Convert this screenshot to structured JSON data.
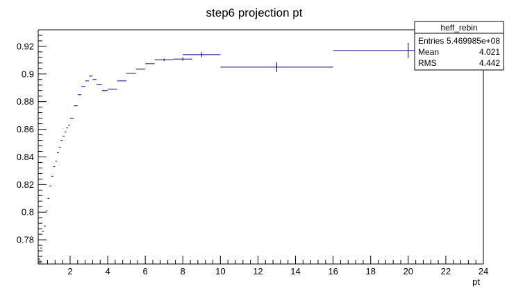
{
  "chart_data": {
    "type": "scatter",
    "title": "step6 projection pt",
    "xlabel": "pt",
    "ylabel": "",
    "xlim": [
      0.3,
      24
    ],
    "ylim": [
      0.7625,
      0.932
    ],
    "x_ticks": [
      2,
      4,
      6,
      8,
      10,
      12,
      14,
      16,
      18,
      20,
      22,
      24
    ],
    "y_ticks": [
      0.78,
      0.8,
      0.82,
      0.84,
      0.86,
      0.88,
      0.9,
      0.92
    ],
    "grid": false,
    "series": [
      {
        "color": "#000080",
        "points": [
          {
            "x": 0.35,
            "y": 0.766,
            "xerr": 0.05,
            "yerr": 0.0
          },
          {
            "x": 0.45,
            "y": 0.774,
            "xerr": 0.05,
            "yerr": 0.0
          },
          {
            "x": 0.55,
            "y": 0.786,
            "xerr": 0.05,
            "yerr": 0.0
          },
          {
            "x": 0.65,
            "y": 0.79,
            "xerr": 0.05,
            "yerr": 0.0
          },
          {
            "x": 0.75,
            "y": 0.801,
            "xerr": 0.05,
            "yerr": 0.0
          },
          {
            "x": 0.85,
            "y": 0.81,
            "xerr": 0.05,
            "yerr": 0.0
          },
          {
            "x": 0.95,
            "y": 0.819,
            "xerr": 0.05,
            "yerr": 0.0
          },
          {
            "x": 1.05,
            "y": 0.826,
            "xerr": 0.05,
            "yerr": 0.0
          },
          {
            "x": 1.15,
            "y": 0.833,
            "xerr": 0.05,
            "yerr": 0.0
          },
          {
            "x": 1.25,
            "y": 0.837,
            "xerr": 0.05,
            "yerr": 0.0
          },
          {
            "x": 1.35,
            "y": 0.843,
            "xerr": 0.05,
            "yerr": 0.0
          },
          {
            "x": 1.45,
            "y": 0.847,
            "xerr": 0.05,
            "yerr": 0.0
          },
          {
            "x": 1.55,
            "y": 0.852,
            "xerr": 0.05,
            "yerr": 0.0
          },
          {
            "x": 1.65,
            "y": 0.855,
            "xerr": 0.05,
            "yerr": 0.0
          },
          {
            "x": 1.75,
            "y": 0.858,
            "xerr": 0.05,
            "yerr": 0.0
          },
          {
            "x": 1.85,
            "y": 0.861,
            "xerr": 0.05,
            "yerr": 0.0
          },
          {
            "x": 1.95,
            "y": 0.863,
            "xerr": 0.05,
            "yerr": 0.0
          },
          {
            "x": 2.1,
            "y": 0.868,
            "xerr": 0.1,
            "yerr": 0.0
          },
          {
            "x": 2.3,
            "y": 0.877,
            "xerr": 0.1,
            "yerr": 0.0
          },
          {
            "x": 2.5,
            "y": 0.885,
            "xerr": 0.1,
            "yerr": 0.0
          },
          {
            "x": 2.7,
            "y": 0.891,
            "xerr": 0.1,
            "yerr": 0.0
          },
          {
            "x": 2.9,
            "y": 0.895,
            "xerr": 0.1,
            "yerr": 0.0
          },
          {
            "x": 3.1,
            "y": 0.8985,
            "xerr": 0.1,
            "yerr": 0.0
          },
          {
            "x": 3.3,
            "y": 0.896,
            "xerr": 0.1,
            "yerr": 0.0
          },
          {
            "x": 3.55,
            "y": 0.8925,
            "xerr": 0.15,
            "yerr": 0.0
          },
          {
            "x": 3.85,
            "y": 0.888,
            "xerr": 0.15,
            "yerr": 0.0
          },
          {
            "x": 4.25,
            "y": 0.889,
            "xerr": 0.25,
            "yerr": 0.0
          },
          {
            "x": 4.75,
            "y": 0.895,
            "xerr": 0.25,
            "yerr": 0.0
          },
          {
            "x": 5.25,
            "y": 0.9005,
            "xerr": 0.25,
            "yerr": 0.0
          },
          {
            "x": 5.75,
            "y": 0.9035,
            "xerr": 0.25,
            "yerr": 0.0
          },
          {
            "x": 6.25,
            "y": 0.9075,
            "xerr": 0.25,
            "yerr": 0.0
          },
          {
            "x": 7.0,
            "y": 0.9103,
            "xerr": 0.5,
            "yerr": 0.001
          },
          {
            "x": 8.0,
            "y": 0.9108,
            "xerr": 0.5,
            "yerr": 0.0013
          },
          {
            "x": 9.0,
            "y": 0.914,
            "xerr": 1.0,
            "yerr": 0.0018
          },
          {
            "x": 13.0,
            "y": 0.905,
            "xerr": 3.0,
            "yerr": 0.0035
          },
          {
            "x": 20.0,
            "y": 0.917,
            "xerr": 4.0,
            "yerr": 0.0055
          }
        ]
      }
    ]
  },
  "stats_box": {
    "title": "heff_rebin",
    "rows": [
      {
        "label": "Entries",
        "value": "5.469985e+08"
      },
      {
        "label": "Mean",
        "value": "4.021"
      },
      {
        "label": "RMS",
        "value": "4.442"
      }
    ]
  }
}
